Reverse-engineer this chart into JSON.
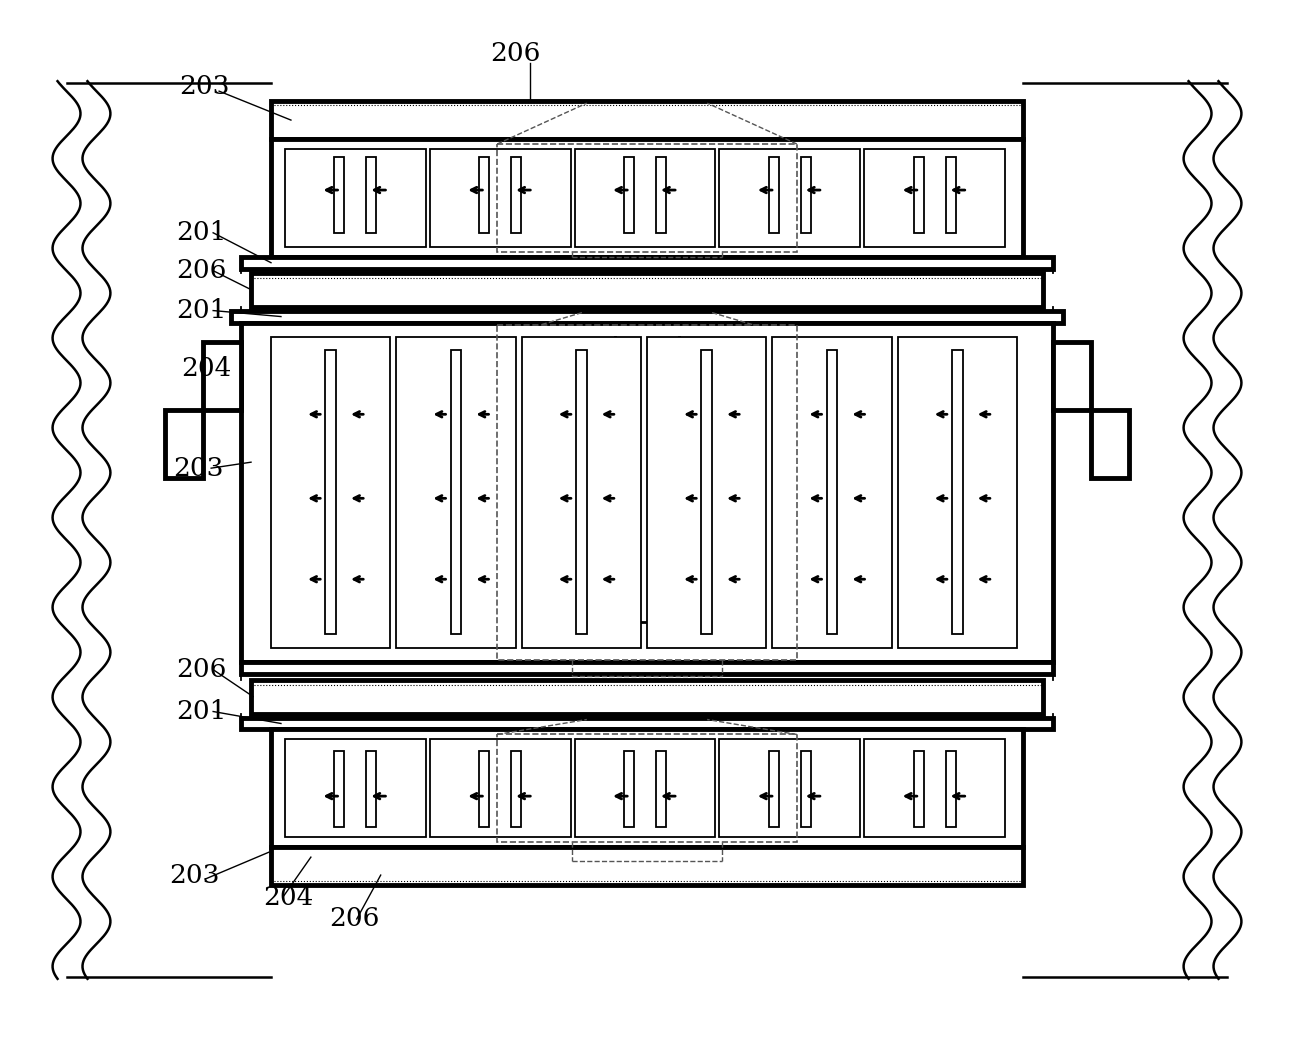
{
  "bg_color": "#ffffff",
  "line_color": "#000000",
  "fig_width": 12.94,
  "fig_height": 10.58,
  "dpi": 100,
  "labels": [
    "206",
    "203",
    "201",
    "206",
    "201",
    "204",
    "203",
    "206",
    "201",
    "203",
    "204",
    "206"
  ],
  "label_positions": [
    [
      530,
      55,
      "206"
    ],
    [
      245,
      88,
      "203"
    ],
    [
      215,
      232,
      "201"
    ],
    [
      215,
      268,
      "206"
    ],
    [
      215,
      308,
      "201"
    ],
    [
      225,
      370,
      "204"
    ],
    [
      218,
      470,
      "203"
    ],
    [
      225,
      672,
      "206"
    ],
    [
      220,
      715,
      "201"
    ],
    [
      195,
      880,
      "203"
    ],
    [
      285,
      898,
      "204"
    ],
    [
      350,
      918,
      "206"
    ]
  ]
}
